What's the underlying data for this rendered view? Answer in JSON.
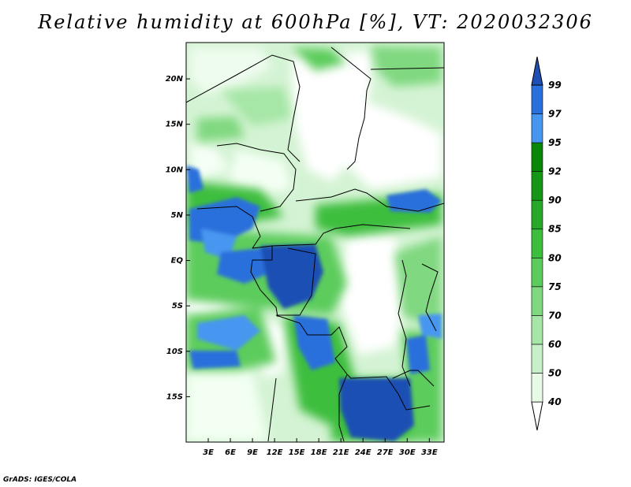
{
  "title": "Relative humidity at 600hPa [%], VT: 2020032306",
  "credit": "GrADS: IGES/COLA",
  "map": {
    "lon_range": [
      0,
      35
    ],
    "lat_range": [
      -20,
      24
    ],
    "lat_ticks": [
      {
        "value": 20,
        "label": "20N"
      },
      {
        "value": 15,
        "label": "15N"
      },
      {
        "value": 10,
        "label": "10N"
      },
      {
        "value": 5,
        "label": "5N"
      },
      {
        "value": 0,
        "label": "EQ"
      },
      {
        "value": -5,
        "label": "5S"
      },
      {
        "value": -10,
        "label": "10S"
      },
      {
        "value": -15,
        "label": "15S"
      }
    ],
    "lon_ticks": [
      {
        "value": 3,
        "label": "3E"
      },
      {
        "value": 6,
        "label": "6E"
      },
      {
        "value": 9,
        "label": "9E"
      },
      {
        "value": 12,
        "label": "12E"
      },
      {
        "value": 15,
        "label": "15E"
      },
      {
        "value": 18,
        "label": "18E"
      },
      {
        "value": 21,
        "label": "21E"
      },
      {
        "value": 24,
        "label": "24E"
      },
      {
        "value": 27,
        "label": "27E"
      },
      {
        "value": 30,
        "label": "30E"
      },
      {
        "value": 33,
        "label": "33E"
      }
    ]
  },
  "colorbar": {
    "levels": [
      {
        "label": "40",
        "color": "#e6fae6"
      },
      {
        "label": "50",
        "color": "#c8f0c8"
      },
      {
        "label": "60",
        "color": "#a6e6a6"
      },
      {
        "label": "70",
        "color": "#80d880"
      },
      {
        "label": "75",
        "color": "#5ccc5c"
      },
      {
        "label": "80",
        "color": "#3cbe3c"
      },
      {
        "label": "85",
        "color": "#28a828"
      },
      {
        "label": "90",
        "color": "#169616"
      },
      {
        "label": "92",
        "color": "#0a870a"
      },
      {
        "label": "95",
        "color": "#4696f0"
      },
      {
        "label": "97",
        "color": "#2a70dc"
      },
      {
        "label": "99",
        "color": "#1e50b4"
      }
    ],
    "below_color": "#ffffff",
    "above_color": "#1e50b4"
  }
}
